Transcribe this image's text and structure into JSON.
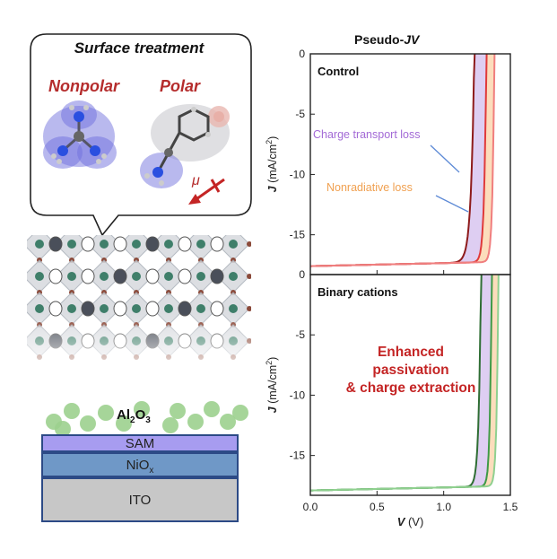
{
  "left": {
    "bubble_title": "Surface treatment",
    "nonpolar_label": "Nonpolar",
    "polar_label": "Polar",
    "dipole_symbol": "μ",
    "layers": {
      "al2o3_main": "Al",
      "al2o3_sub1": "2",
      "al2o3_mid": "O",
      "al2o3_sub2": "3",
      "sam": "SAM",
      "nio_main": "NiO",
      "nio_sub": "x",
      "ito": "ITO"
    }
  },
  "figure_title_prefix": "Pseudo-",
  "figure_title_italic": "JV",
  "colors": {
    "dark_red": "#8e1b1b",
    "red": "#e03a3a",
    "salmon": "#f07e7e",
    "purple_fill": "#d8c6f0",
    "orange_fill": "#fbd7b0",
    "dark_green": "#2f6e34",
    "green": "#3f9a46",
    "light_green": "#8fd08f",
    "annot_line": "#5d8ad6"
  },
  "chart_data": [
    {
      "type": "line",
      "panel_label": "Control",
      "xlim": [
        0,
        1.5
      ],
      "ylim": [
        -18.3,
        0
      ],
      "ylabel_main": "J",
      "ylabel_unit": " (mA/cm",
      "ylabel_sup": "2",
      "ylabel_end": ")",
      "yticks": [
        0,
        -5,
        -10,
        -15
      ],
      "ytick_labels": [
        "0",
        "-5",
        "-10",
        "-15"
      ],
      "annotations": [
        "Charge transport loss",
        "Nonradiative loss"
      ],
      "series": [
        {
          "voc": 1.23,
          "jsc": -17.6,
          "ideality": 0.024,
          "color": "#8e1b1b"
        },
        {
          "voc": 1.32,
          "jsc": -17.6,
          "ideality": 0.015,
          "color": "#e03a3a"
        },
        {
          "voc": 1.38,
          "jsc": -17.6,
          "ideality": 0.013,
          "color": "#f07e7e"
        }
      ]
    },
    {
      "type": "line",
      "panel_label": "Binary cations",
      "xlim": [
        0,
        1.5
      ],
      "ylim": [
        -18.3,
        0
      ],
      "xlabel_main": "V",
      "xlabel_unit": " (V)",
      "xticks": [
        0,
        0.5,
        1,
        1.5
      ],
      "xtick_labels": [
        "0.0",
        "0.5",
        "1.0",
        "1.5"
      ],
      "ylabel_main": "J",
      "ylabel_unit": " (mA/cm",
      "ylabel_sup": "2",
      "ylabel_end": ")",
      "yticks": [
        0,
        -5,
        -10,
        -15
      ],
      "ytick_labels": [
        "0",
        "-5",
        "-10",
        "-15"
      ],
      "annotations": [
        "Enhanced",
        "passivation",
        "& charge extraction"
      ],
      "series": [
        {
          "voc": 1.28,
          "jsc": -17.9,
          "ideality": 0.016,
          "color": "#2f6e34"
        },
        {
          "voc": 1.36,
          "jsc": -17.9,
          "ideality": 0.012,
          "color": "#3f9a46"
        },
        {
          "voc": 1.41,
          "jsc": -17.9,
          "ideality": 0.012,
          "color": "#8fd08f"
        }
      ]
    }
  ]
}
